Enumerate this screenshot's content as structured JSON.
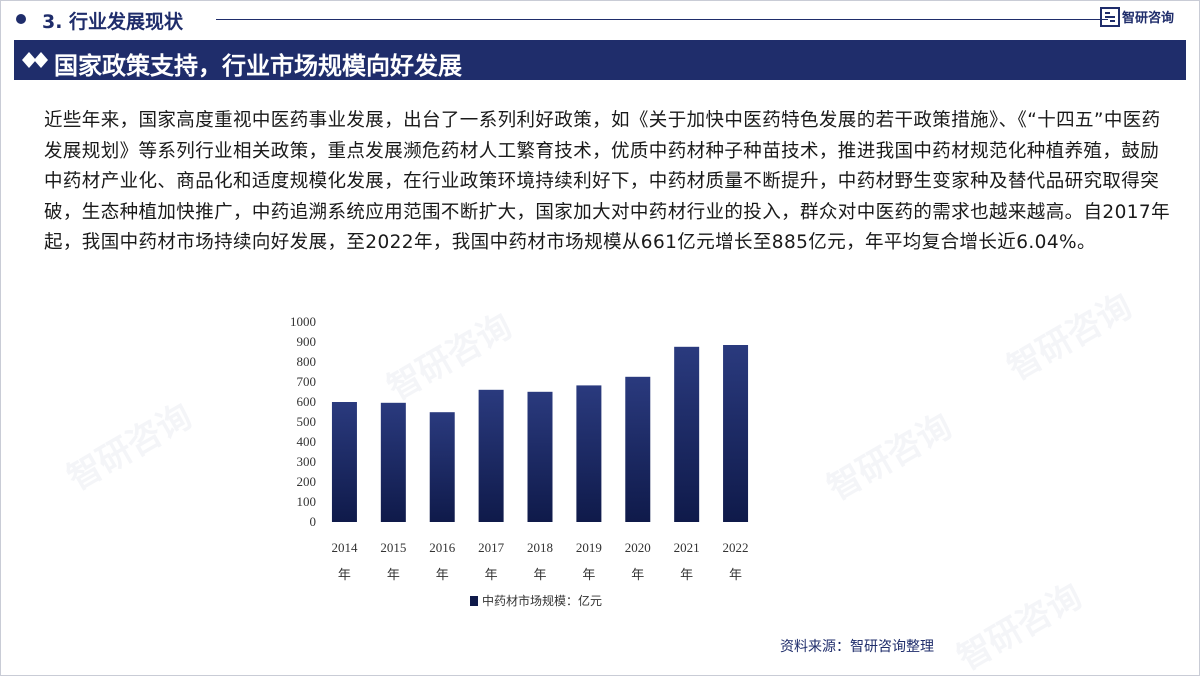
{
  "section": {
    "title": "3. 行业发展现状"
  },
  "logo": {
    "text": "智研咨询",
    "icon": "zhiyan-logo-icon"
  },
  "banner": {
    "title": "国家政策支持，行业市场规模向好发展",
    "icon": "double-diamond-icon"
  },
  "body": {
    "paragraph": "近些年来，国家高度重视中医药事业发展，出台了一系列利好政策，如《关于加快中医药特色发展的若干政策措施》、《“十四五”中医药发展规划》等系列行业相关政策，重点发展濒危药材人工繁育技术，优质中药材种子种苗技术，推进我国中药材规范化种植养殖，鼓励中药材产业化、商品化和适度规模化发展，在行业政策环境持续利好下，中药材质量不断提升，中药材野生变家种及替代品研究取得突破，生态种植加快推广，中药追溯系统应用范围不断扩大，国家加大对中药材行业的投入，群众对中医药的需求也越来越高。自2017年起，我国中药材市场持续向好发展，至2022年，我国中药材市场规模从661亿元增长至885亿元，年平均复合增长近6.04%。"
  },
  "watermark": {
    "text": "智研咨询"
  },
  "chart_data": {
    "type": "bar",
    "categories": [
      "2014年",
      "2015年",
      "2016年",
      "2017年",
      "2018年",
      "2019年",
      "2020年",
      "2021年",
      "2022年"
    ],
    "series": [
      {
        "name": "中药材市场规模：亿元",
        "values": [
          600,
          596,
          549,
          661,
          651,
          683,
          726,
          876,
          885
        ]
      }
    ],
    "yticks": [
      0,
      100,
      200,
      300,
      400,
      500,
      600,
      700,
      800,
      900,
      1000
    ],
    "ylim": [
      0,
      1000
    ],
    "grid": false,
    "legend_position": "bottom",
    "bar_color_top": "#2a3a7e",
    "bar_color_bottom": "#0f1a4a"
  },
  "source": {
    "text": "资料来源：智研咨询整理"
  },
  "colors": {
    "brand": "#1f2d6b"
  }
}
